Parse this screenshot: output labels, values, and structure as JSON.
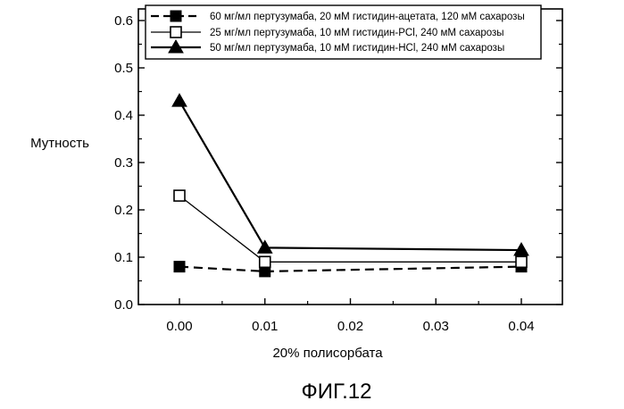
{
  "chart_data": {
    "type": "line",
    "xlabel": "20% полисорбата",
    "ylabel": "Мутность",
    "caption": "ФИГ.12",
    "xlim": [
      -0.005,
      0.043
    ],
    "ylim": [
      0.0,
      0.62
    ],
    "x_ticks": [
      0.0,
      0.01,
      0.02,
      0.03,
      0.04
    ],
    "x_tick_labels": [
      "0.00",
      "0.01",
      "0.02",
      "0.03",
      "0.04"
    ],
    "y_ticks": [
      0.0,
      0.1,
      0.2,
      0.3,
      0.4,
      0.5,
      0.6
    ],
    "y_tick_labels": [
      "0.0",
      "0.1",
      "0.2",
      "0.3",
      "0.4",
      "0.5",
      "0.6"
    ],
    "grid": false,
    "legend_position": "top",
    "series": [
      {
        "name": "60 мг/мл пертузумаба, 20 мМ гистидин-ацетата, 120 мМ сахарозы",
        "marker": "filled-square",
        "line_style": "dashed",
        "x": [
          0.0,
          0.01,
          0.04
        ],
        "y": [
          0.08,
          0.07,
          0.08
        ]
      },
      {
        "name": "25 мг/мл пертузумаба, 10 мМ гистидин-PCl, 240 мМ сахарозы",
        "marker": "open-square",
        "line_style": "solid-thin",
        "x": [
          0.0,
          0.01,
          0.04
        ],
        "y": [
          0.23,
          0.09,
          0.09
        ]
      },
      {
        "name": "50 мг/мл пертузумаба, 10 мМ гистидин-HCl, 240 мМ сахарозы",
        "marker": "filled-triangle",
        "line_style": "solid",
        "x": [
          0.0,
          0.01,
          0.04
        ],
        "y": [
          0.43,
          0.12,
          0.115
        ]
      }
    ]
  }
}
